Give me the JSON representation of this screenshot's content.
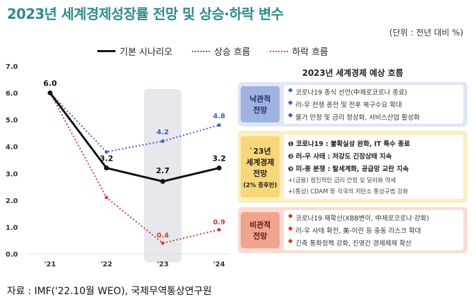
{
  "title": "2023년 세계경제성장률 전망 및 상승·하락 변수",
  "unit": "(단위 : 전년 대비 %)",
  "legend": {
    "base": "기본 시나리오",
    "up": "상승 흐름",
    "down": "하락 흐름"
  },
  "source": "자료 : IMF('22.10월 WEO), 국제무역통상연구원",
  "colors": {
    "title": "#2e8b8b",
    "base": "#111111",
    "up": "#3f5fbf",
    "down": "#d23b3b",
    "highlight": "#e6e8ee"
  },
  "chart_data": {
    "type": "line",
    "categories": [
      "'21",
      "'22",
      "'23",
      "'24"
    ],
    "ylim": [
      0,
      7
    ],
    "yticks": [
      "0.0",
      "1.0",
      "2.0",
      "3.0",
      "4.0",
      "5.0",
      "6.0",
      "7.0"
    ],
    "highlight_category": "'23",
    "series": [
      {
        "name": "기본 시나리오",
        "values": [
          6.0,
          3.2,
          2.7,
          3.2
        ],
        "labels": [
          "6.0",
          "3.2",
          "2.7",
          "3.2"
        ],
        "style": "solid"
      },
      {
        "name": "상승 흐름",
        "values": [
          6.0,
          3.8,
          4.2,
          4.8
        ],
        "labels": [
          "",
          "",
          "4.2",
          "4.8"
        ],
        "style": "dotted"
      },
      {
        "name": "하락 흐름",
        "values": [
          6.0,
          2.1,
          0.4,
          0.9
        ],
        "labels": [
          "",
          "",
          "0.4",
          "0.9"
        ],
        "style": "dotted"
      }
    ]
  },
  "panel": {
    "title": "2023년 세계경제 예상 흐름",
    "optimistic": {
      "label": "낙관적\n전망",
      "items": [
        "코로나19 종식 선언(中제로코로나 종료)",
        "러-우 전쟁 종전 및 전후 복구수요 확대",
        "물가 안정 및 금리 정상화, 서비스산업 활성화"
      ]
    },
    "base": {
      "label": "`23년\n세계경제\n전망",
      "sublabel": "(2% 중후반)",
      "items": [
        "❶ 코로나19 : 불확실성 완화, IT 특수 종료",
        "❷ 러-우 사태 : 저강도 긴장상태 지속",
        "❸ 미-중 분쟁 : 탈세계화, 공급망 교란 지속"
      ],
      "subitems": [
        "+(금융) 점진적인 금리 안정 및 달러화 약세",
        "+(통상) CDAM 등 각국의 저탄소 통상규범 강화"
      ]
    },
    "pessimistic": {
      "label": "비관적\n전망",
      "items": [
        "코로나19 재확산(XBB변이, 中제로코로나 강화)",
        "러-우 사태 확전, 美-이란 등 중동 리스크 확대",
        "긴축 통화정책 강화, 진영간 경제제재 확산"
      ]
    }
  }
}
